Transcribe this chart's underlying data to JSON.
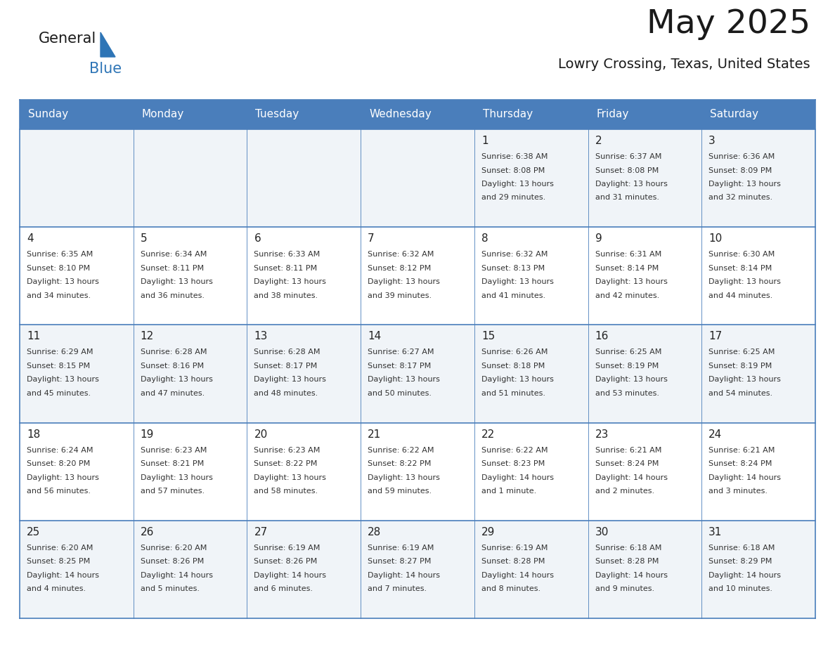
{
  "title": "May 2025",
  "subtitle": "Lowry Crossing, Texas, United States",
  "days_of_week": [
    "Sunday",
    "Monday",
    "Tuesday",
    "Wednesday",
    "Thursday",
    "Friday",
    "Saturday"
  ],
  "header_bg": "#4A7EBB",
  "header_text": "#FFFFFF",
  "cell_bg_light": "#F0F4F8",
  "cell_bg_white": "#FFFFFF",
  "cell_border_color": "#4A7EBB",
  "cell_inner_border": "#CCCCCC",
  "day_num_color": "#222222",
  "text_color": "#333333",
  "title_color": "#1a1a1a",
  "logo_general_color": "#1a1a1a",
  "logo_blue_color": "#2E75B6",
  "fig_width": 11.88,
  "fig_height": 9.18,
  "calendar_data": [
    [
      {
        "day": "",
        "sunrise": "",
        "sunset": "",
        "daylight": ""
      },
      {
        "day": "",
        "sunrise": "",
        "sunset": "",
        "daylight": ""
      },
      {
        "day": "",
        "sunrise": "",
        "sunset": "",
        "daylight": ""
      },
      {
        "day": "",
        "sunrise": "",
        "sunset": "",
        "daylight": ""
      },
      {
        "day": "1",
        "sunrise": "6:38 AM",
        "sunset": "8:08 PM",
        "daylight": "13 hours and 29 minutes."
      },
      {
        "day": "2",
        "sunrise": "6:37 AM",
        "sunset": "8:08 PM",
        "daylight": "13 hours and 31 minutes."
      },
      {
        "day": "3",
        "sunrise": "6:36 AM",
        "sunset": "8:09 PM",
        "daylight": "13 hours and 32 minutes."
      }
    ],
    [
      {
        "day": "4",
        "sunrise": "6:35 AM",
        "sunset": "8:10 PM",
        "daylight": "13 hours and 34 minutes."
      },
      {
        "day": "5",
        "sunrise": "6:34 AM",
        "sunset": "8:11 PM",
        "daylight": "13 hours and 36 minutes."
      },
      {
        "day": "6",
        "sunrise": "6:33 AM",
        "sunset": "8:11 PM",
        "daylight": "13 hours and 38 minutes."
      },
      {
        "day": "7",
        "sunrise": "6:32 AM",
        "sunset": "8:12 PM",
        "daylight": "13 hours and 39 minutes."
      },
      {
        "day": "8",
        "sunrise": "6:32 AM",
        "sunset": "8:13 PM",
        "daylight": "13 hours and 41 minutes."
      },
      {
        "day": "9",
        "sunrise": "6:31 AM",
        "sunset": "8:14 PM",
        "daylight": "13 hours and 42 minutes."
      },
      {
        "day": "10",
        "sunrise": "6:30 AM",
        "sunset": "8:14 PM",
        "daylight": "13 hours and 44 minutes."
      }
    ],
    [
      {
        "day": "11",
        "sunrise": "6:29 AM",
        "sunset": "8:15 PM",
        "daylight": "13 hours and 45 minutes."
      },
      {
        "day": "12",
        "sunrise": "6:28 AM",
        "sunset": "8:16 PM",
        "daylight": "13 hours and 47 minutes."
      },
      {
        "day": "13",
        "sunrise": "6:28 AM",
        "sunset": "8:17 PM",
        "daylight": "13 hours and 48 minutes."
      },
      {
        "day": "14",
        "sunrise": "6:27 AM",
        "sunset": "8:17 PM",
        "daylight": "13 hours and 50 minutes."
      },
      {
        "day": "15",
        "sunrise": "6:26 AM",
        "sunset": "8:18 PM",
        "daylight": "13 hours and 51 minutes."
      },
      {
        "day": "16",
        "sunrise": "6:25 AM",
        "sunset": "8:19 PM",
        "daylight": "13 hours and 53 minutes."
      },
      {
        "day": "17",
        "sunrise": "6:25 AM",
        "sunset": "8:19 PM",
        "daylight": "13 hours and 54 minutes."
      }
    ],
    [
      {
        "day": "18",
        "sunrise": "6:24 AM",
        "sunset": "8:20 PM",
        "daylight": "13 hours and 56 minutes."
      },
      {
        "day": "19",
        "sunrise": "6:23 AM",
        "sunset": "8:21 PM",
        "daylight": "13 hours and 57 minutes."
      },
      {
        "day": "20",
        "sunrise": "6:23 AM",
        "sunset": "8:22 PM",
        "daylight": "13 hours and 58 minutes."
      },
      {
        "day": "21",
        "sunrise": "6:22 AM",
        "sunset": "8:22 PM",
        "daylight": "13 hours and 59 minutes."
      },
      {
        "day": "22",
        "sunrise": "6:22 AM",
        "sunset": "8:23 PM",
        "daylight": "14 hours and 1 minute."
      },
      {
        "day": "23",
        "sunrise": "6:21 AM",
        "sunset": "8:24 PM",
        "daylight": "14 hours and 2 minutes."
      },
      {
        "day": "24",
        "sunrise": "6:21 AM",
        "sunset": "8:24 PM",
        "daylight": "14 hours and 3 minutes."
      }
    ],
    [
      {
        "day": "25",
        "sunrise": "6:20 AM",
        "sunset": "8:25 PM",
        "daylight": "14 hours and 4 minutes."
      },
      {
        "day": "26",
        "sunrise": "6:20 AM",
        "sunset": "8:26 PM",
        "daylight": "14 hours and 5 minutes."
      },
      {
        "day": "27",
        "sunrise": "6:19 AM",
        "sunset": "8:26 PM",
        "daylight": "14 hours and 6 minutes."
      },
      {
        "day": "28",
        "sunrise": "6:19 AM",
        "sunset": "8:27 PM",
        "daylight": "14 hours and 7 minutes."
      },
      {
        "day": "29",
        "sunrise": "6:19 AM",
        "sunset": "8:28 PM",
        "daylight": "14 hours and 8 minutes."
      },
      {
        "day": "30",
        "sunrise": "6:18 AM",
        "sunset": "8:28 PM",
        "daylight": "14 hours and 9 minutes."
      },
      {
        "day": "31",
        "sunrise": "6:18 AM",
        "sunset": "8:29 PM",
        "daylight": "14 hours and 10 minutes."
      }
    ]
  ]
}
